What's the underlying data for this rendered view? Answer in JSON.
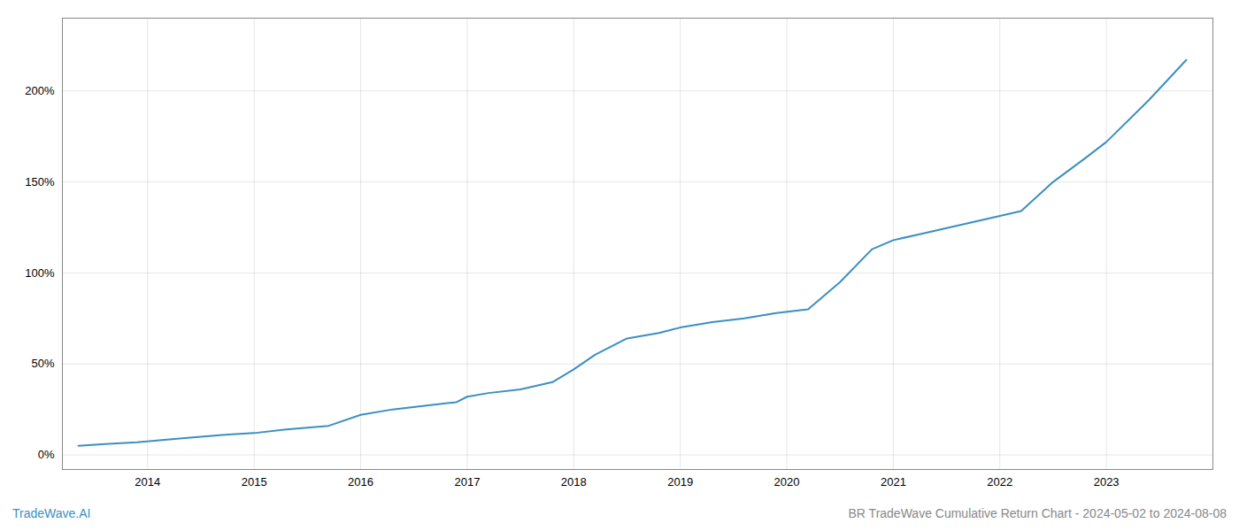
{
  "chart_data": {
    "type": "line",
    "title": "BR TradeWave Cumulative Return Chart - 2024-05-02 to 2024-08-08",
    "annotations": [
      "TradeWave.AI"
    ],
    "color": "#3a8fc1",
    "x": [
      2013.35,
      2013.6,
      2013.9,
      2014.3,
      2014.7,
      2015.0,
      2015.3,
      2015.7,
      2016.0,
      2016.3,
      2016.6,
      2016.9,
      2017.0,
      2017.2,
      2017.5,
      2017.8,
      2018.0,
      2018.2,
      2018.5,
      2018.8,
      2019.0,
      2019.3,
      2019.6,
      2019.9,
      2020.2,
      2020.5,
      2020.8,
      2021.0,
      2021.3,
      2021.6,
      2021.9,
      2022.2,
      2022.5,
      2022.8,
      2023.0,
      2023.4,
      2023.75
    ],
    "values": [
      5,
      6,
      7,
      9,
      11,
      12,
      14,
      16,
      22,
      25,
      27,
      29,
      32,
      34,
      36,
      40,
      47,
      55,
      64,
      67,
      70,
      73,
      75,
      78,
      80,
      95,
      113,
      118,
      122,
      126,
      130,
      134,
      150,
      163,
      172,
      195,
      217
    ],
    "xlim": [
      2013.2,
      2024.0
    ],
    "xticks": [
      2014,
      2015,
      2016,
      2017,
      2018,
      2019,
      2020,
      2021,
      2022,
      2023
    ],
    "ylim": [
      -8,
      240
    ],
    "yticks": [
      {
        "value": 0,
        "label": "0%"
      },
      {
        "value": 50,
        "label": "50%"
      },
      {
        "value": 100,
        "label": "100%"
      },
      {
        "value": 150,
        "label": "150%"
      },
      {
        "value": 200,
        "label": "200%"
      }
    ],
    "grid": true
  }
}
